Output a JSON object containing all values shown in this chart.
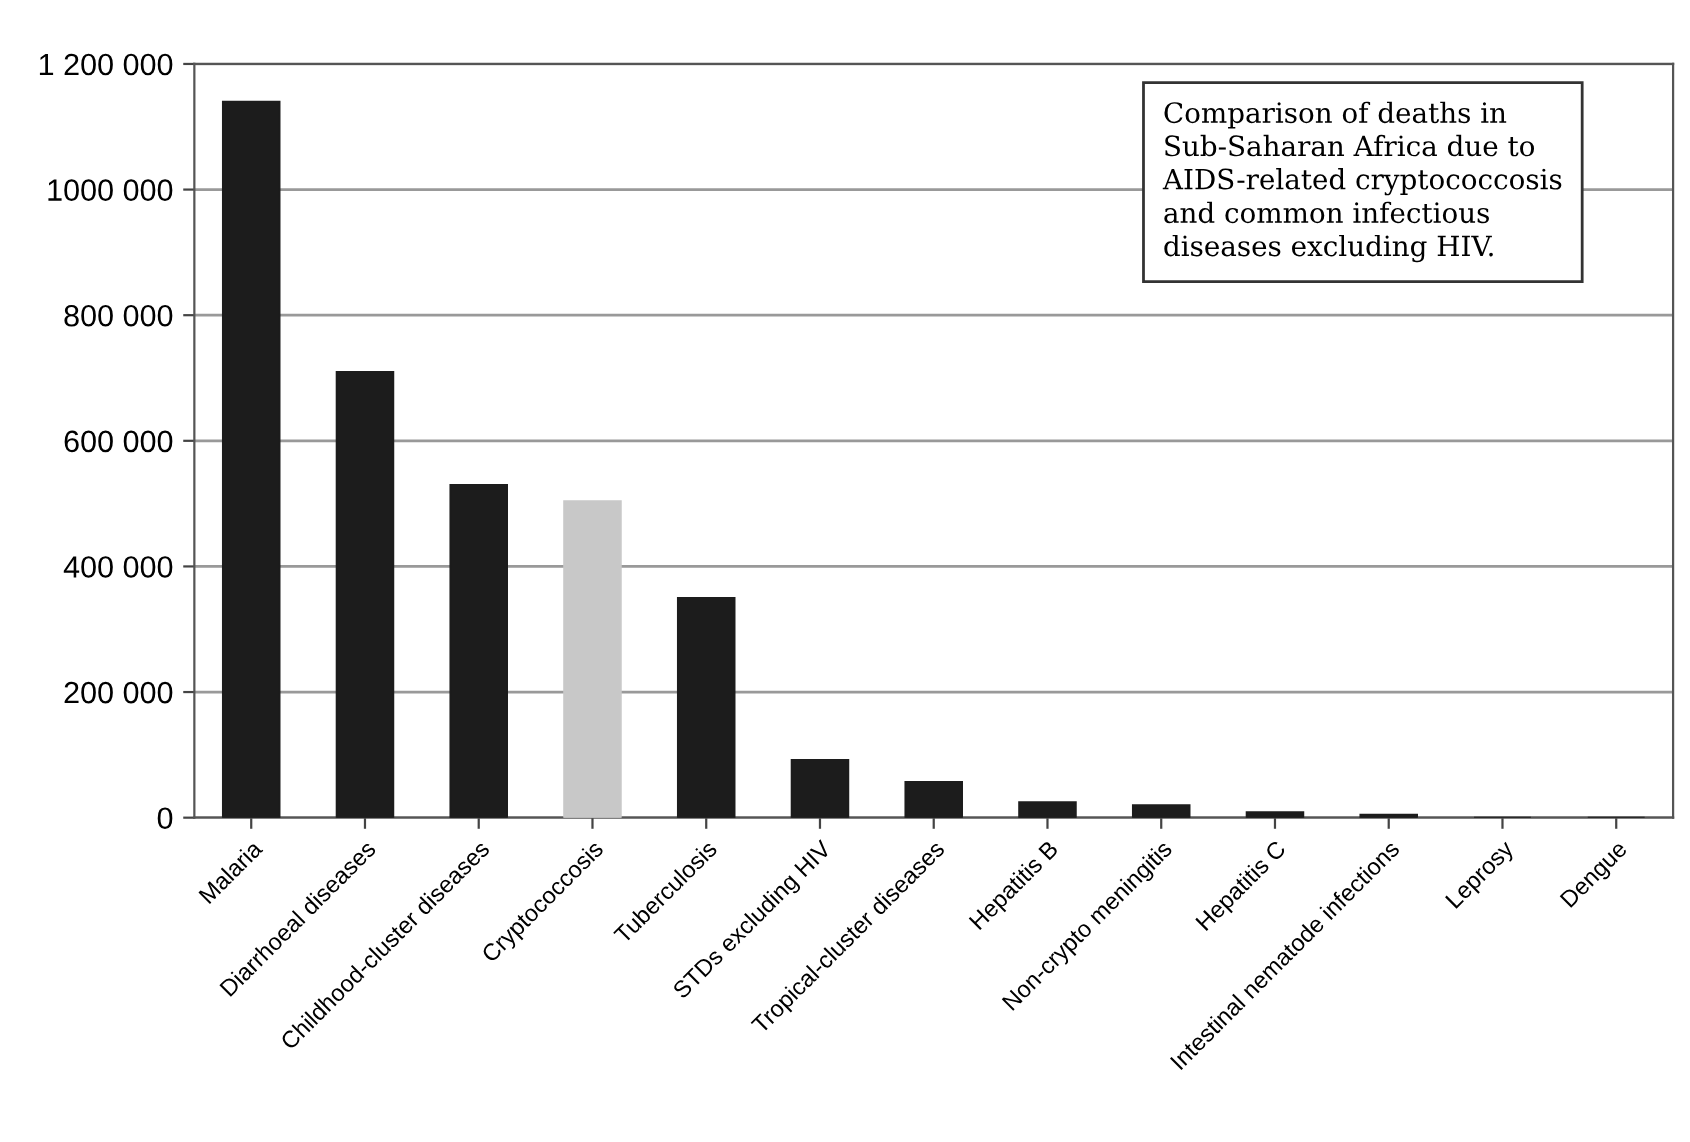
{
  "chart_data": {
    "type": "bar",
    "categories": [
      "Malaria",
      "Diarrhoeal diseases",
      "Childhood-cluster diseases",
      "Cryptococcosis",
      "Tuberculosis",
      "STDs excluding HIV",
      "Tropical-cluster diseases",
      "Hepatitis B",
      "Non-crypto meningitis",
      "Hepatitis C",
      "Intestinal nematode infections",
      "Leprosy",
      "Dengue"
    ],
    "values": [
      1140000,
      710000,
      530000,
      504000,
      350000,
      92000,
      57000,
      25000,
      20000,
      9000,
      5000,
      0,
      0
    ],
    "colors": [
      "#1c1c1c",
      "#1c1c1c",
      "#1c1c1c",
      "#c8c8c8",
      "#1c1c1c",
      "#1c1c1c",
      "#1c1c1c",
      "#1c1c1c",
      "#1c1c1c",
      "#1c1c1c",
      "#1c1c1c",
      "#1c1c1c",
      "#1c1c1c"
    ],
    "ylim": [
      0,
      1200000
    ],
    "yticks": [
      {
        "value": 0,
        "label": "0"
      },
      {
        "value": 200000,
        "label": "200 000"
      },
      {
        "value": 400000,
        "label": "400 000"
      },
      {
        "value": 600000,
        "label": "600 000"
      },
      {
        "value": 800000,
        "label": "800 000"
      },
      {
        "value": 1000000,
        "label": "1000 000"
      },
      {
        "value": 1200000,
        "label": "1 200 000"
      }
    ],
    "grid": "y",
    "annotations": [
      "Comparison of deaths in Sub-Saharan Africa due to AIDS-related cryptococcosis and common infectious diseases excluding HIV."
    ]
  }
}
